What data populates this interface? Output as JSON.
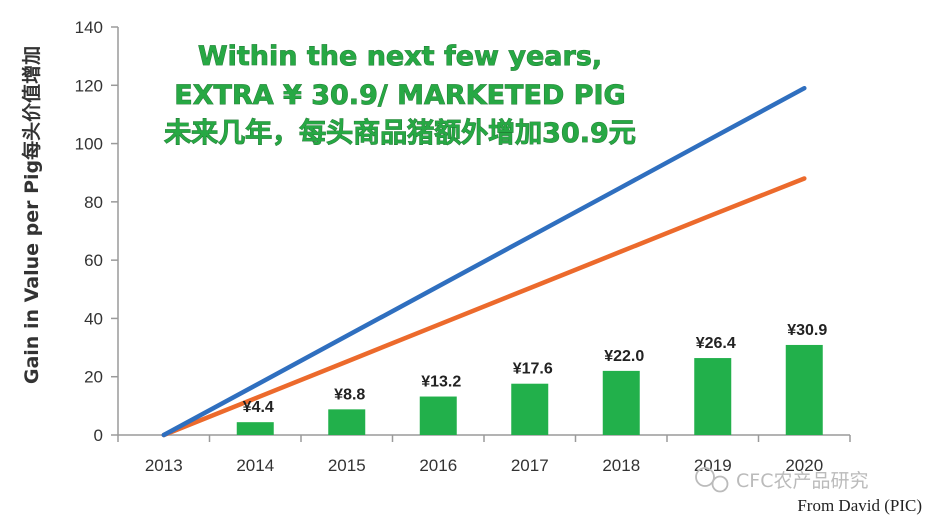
{
  "chart_data": {
    "type": "bar",
    "title_lines": [
      "Within the next few years,",
      "EXTRA ¥ 30.9/ MARKETED PIG",
      "未来几年，每头商品猪额外增加30.9元"
    ],
    "ylabel": "Gain in Value per Pig每头价值增加",
    "xlabel": "",
    "categories": [
      "2013",
      "2014",
      "2015",
      "2016",
      "2017",
      "2018",
      "2019",
      "2020"
    ],
    "ylim": [
      0,
      140
    ],
    "yticks": [
      "0",
      "20",
      "40",
      "60",
      "80",
      "100",
      "120",
      "140"
    ],
    "grid": false,
    "bars": {
      "values": [
        0,
        4.4,
        8.8,
        13.2,
        17.6,
        22.0,
        26.4,
        30.9
      ],
      "labels": [
        "",
        "¥4.4",
        "¥8.8",
        "¥13.2",
        "¥17.6",
        "¥22.0",
        "¥26.4",
        "¥30.9"
      ],
      "color": "#22b04b"
    },
    "lines": [
      {
        "values": [
          0,
          17,
          34,
          51,
          68,
          85,
          102,
          119
        ],
        "color": "#2f6fbf"
      },
      {
        "values": [
          0,
          12.6,
          25.2,
          37.8,
          50.4,
          63,
          75.6,
          88
        ],
        "color": "#ec6a2c"
      }
    ]
  },
  "watermark": "CFC农产品研究",
  "source": "From David (PIC)"
}
